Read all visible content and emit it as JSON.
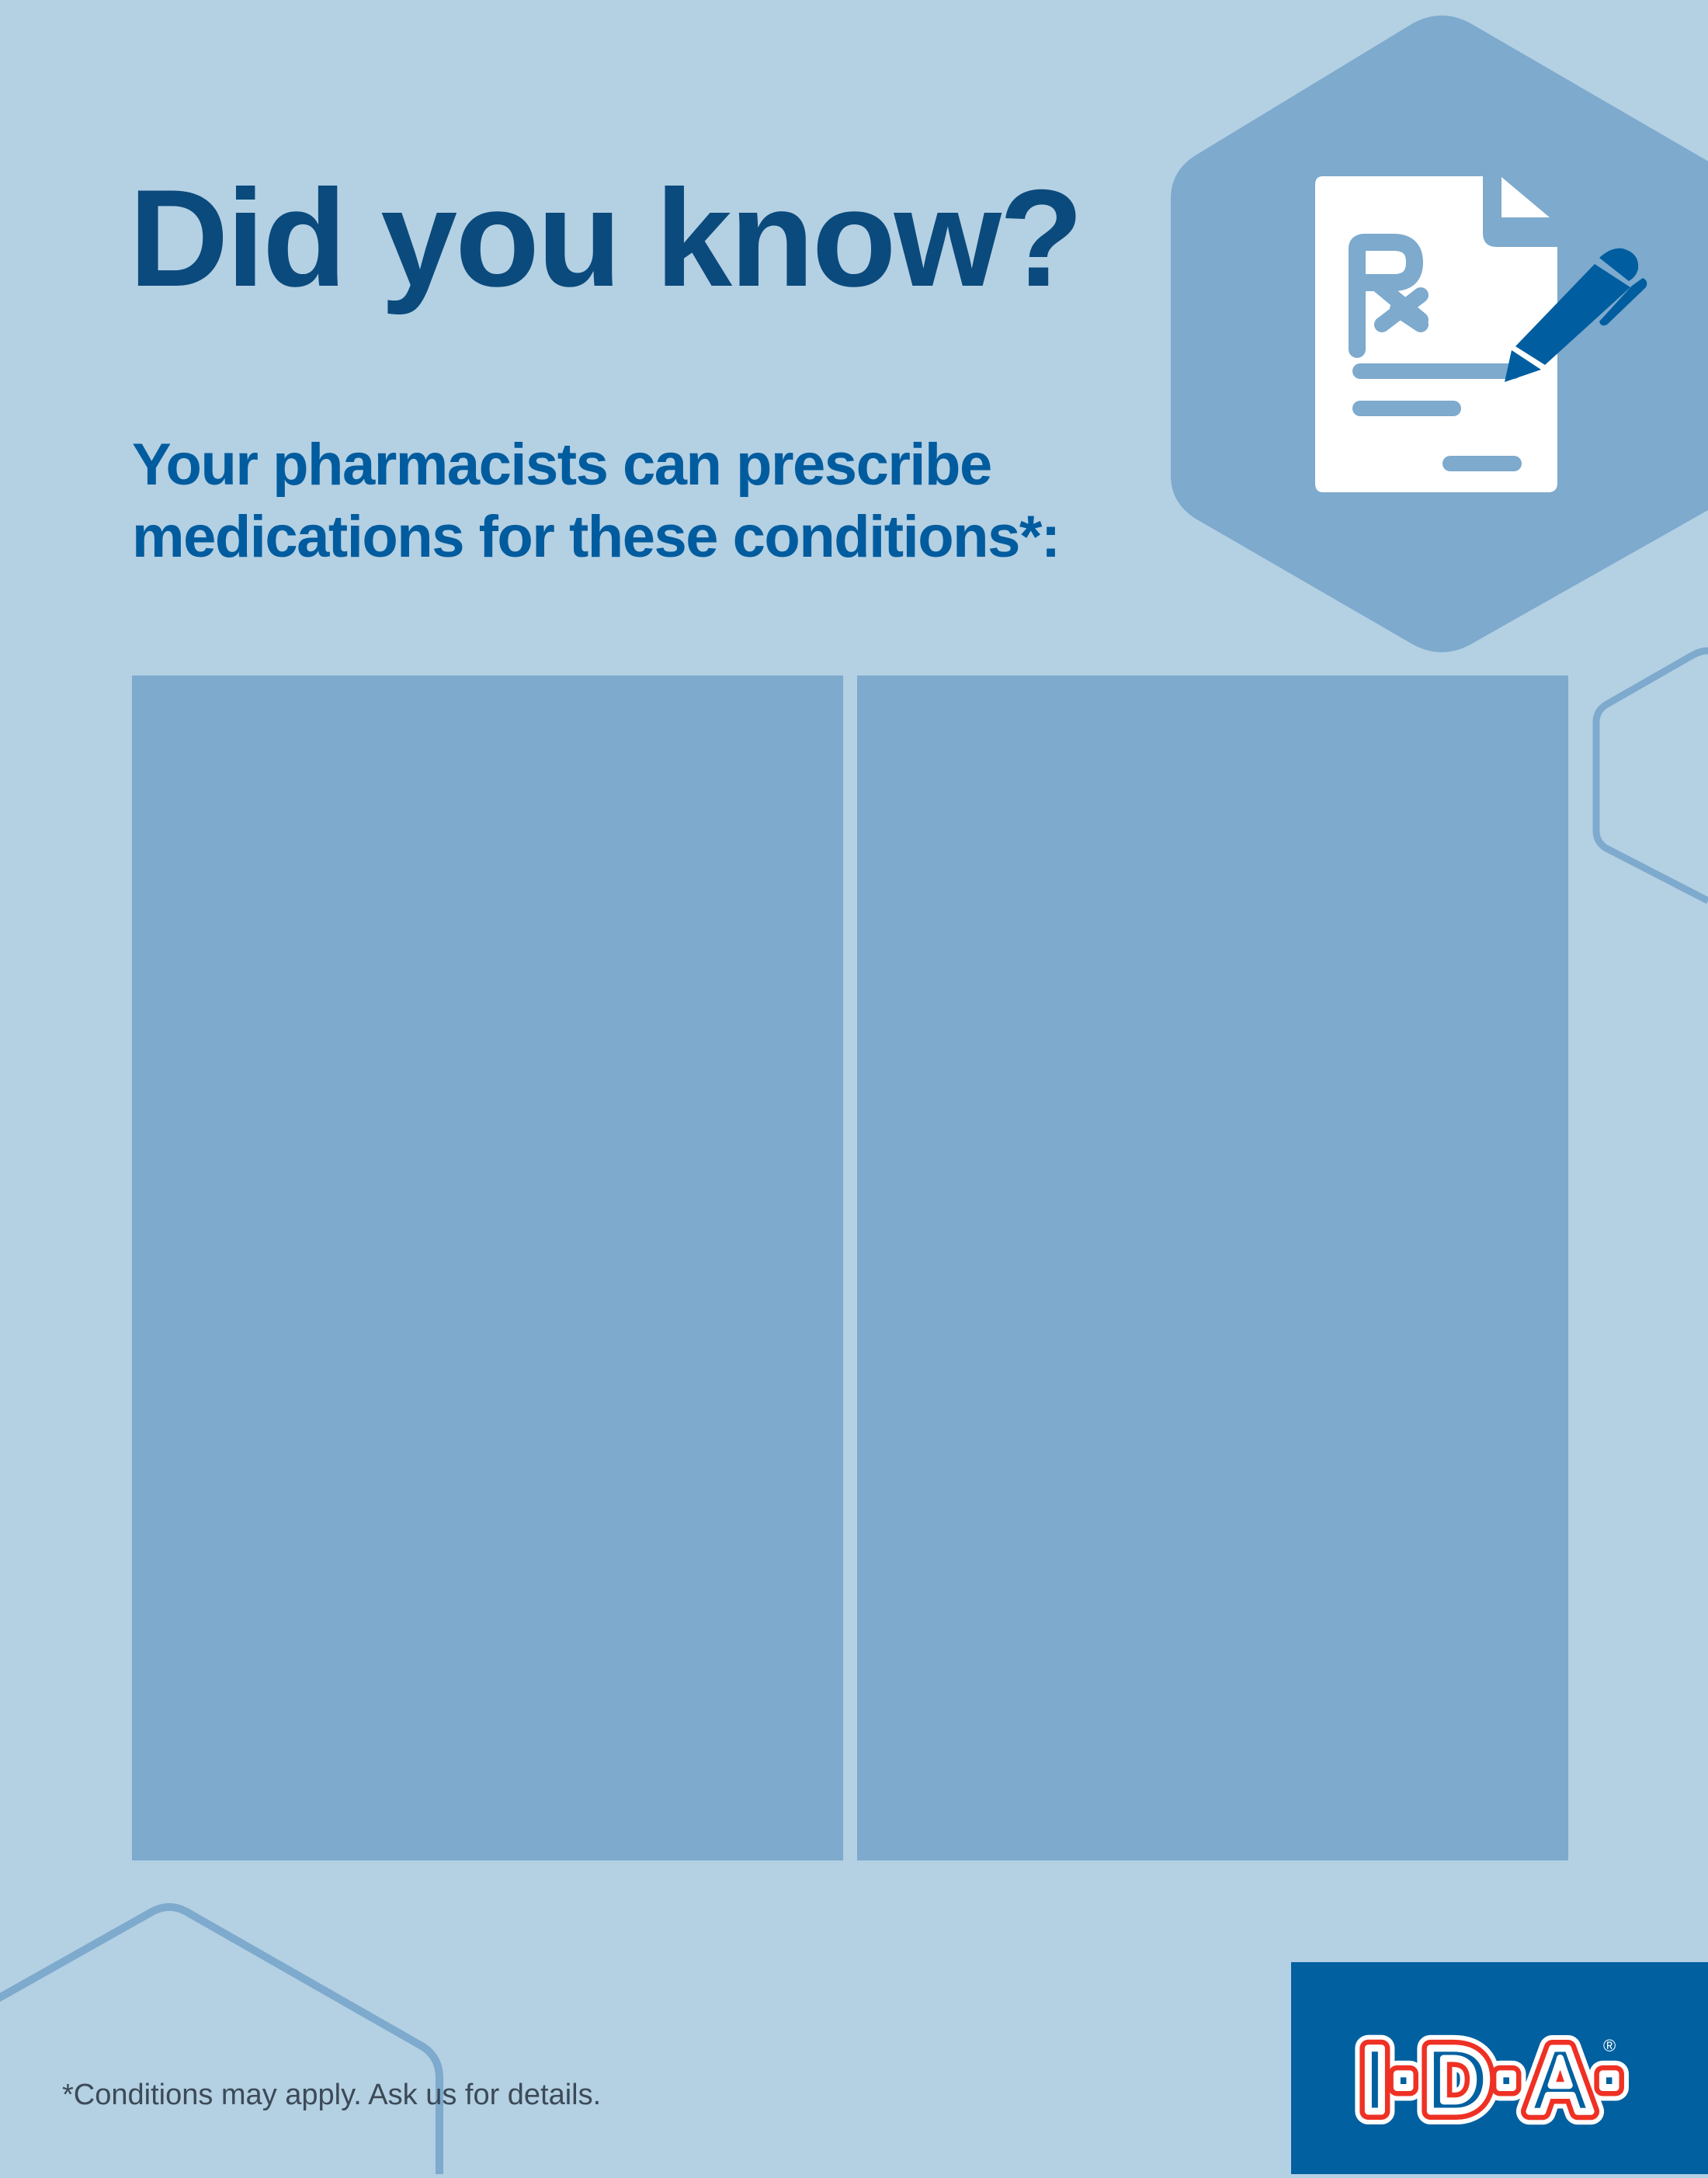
{
  "heading": {
    "title": "Did you know?",
    "subtitle_line1": "Your pharmacists can prescribe",
    "subtitle_line2": "medications for these conditions*:"
  },
  "icon": {
    "name": "prescription-document-pen-icon"
  },
  "panels": [
    {
      "name": "conditions-panel-left"
    },
    {
      "name": "conditions-panel-right"
    }
  ],
  "footer": {
    "footnote": "*Conditions may apply. Ask us for details.",
    "logo_text": "I·D·A",
    "logo_mark": "®"
  },
  "colors": {
    "background": "#b4d0e3",
    "panel": "#7daacd",
    "title": "#0b4a7c",
    "subtitle": "#005c9e",
    "logo_bg": "#0060a0",
    "logo_red": "#ee3124"
  }
}
